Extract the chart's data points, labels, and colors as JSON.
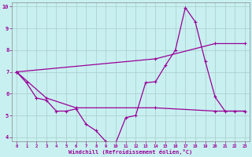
{
  "xlabel": "Windchill (Refroidissement éolien,°C)",
  "background_color": "#c8f0f0",
  "line_color": "#990099",
  "grid_color": "#aacccc",
  "xlim": [
    -0.5,
    23.5
  ],
  "ylim": [
    3.8,
    10.2
  ],
  "xticks": [
    0,
    1,
    2,
    3,
    4,
    5,
    6,
    7,
    8,
    9,
    10,
    11,
    12,
    13,
    14,
    15,
    16,
    17,
    18,
    19,
    20,
    21,
    22,
    23
  ],
  "yticks": [
    4,
    5,
    6,
    7,
    8,
    9,
    10
  ],
  "line1_x": [
    0,
    1,
    2,
    3,
    4,
    5,
    6,
    7,
    8,
    9,
    10,
    11,
    12,
    13,
    14,
    15,
    16,
    17,
    18,
    19,
    20,
    21,
    22,
    23
  ],
  "line1_y": [
    7.0,
    6.5,
    5.8,
    5.7,
    5.2,
    5.2,
    5.3,
    4.6,
    4.3,
    3.8,
    3.75,
    4.9,
    5.0,
    6.5,
    6.55,
    7.3,
    8.0,
    9.95,
    9.3,
    7.5,
    5.85,
    5.2,
    5.2,
    5.2
  ],
  "line2_x": [
    0,
    3,
    6,
    14,
    20,
    23
  ],
  "line2_y": [
    7.0,
    5.8,
    5.35,
    5.35,
    5.2,
    5.2
  ],
  "line3_x": [
    0,
    14,
    20,
    23
  ],
  "line3_y": [
    7.0,
    7.6,
    8.3,
    8.3
  ]
}
